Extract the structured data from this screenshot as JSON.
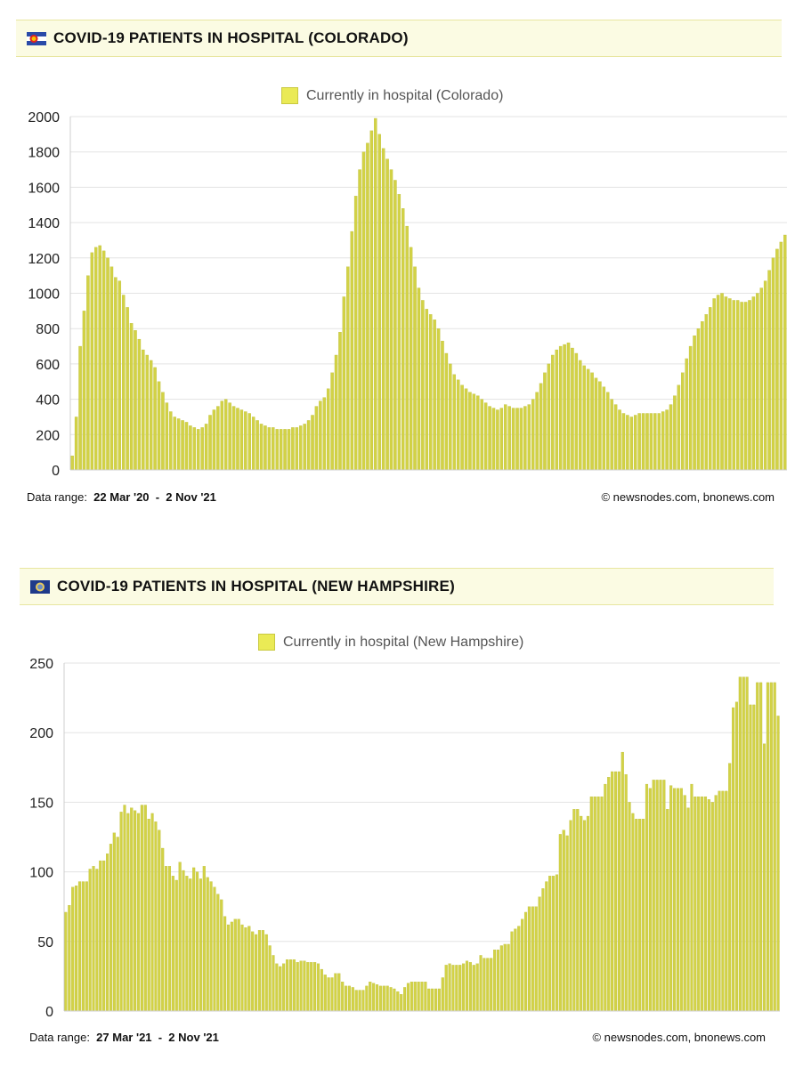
{
  "panels": [
    {
      "header_title": "COVID-19 PATIENTS IN HOSPITAL (COLORADO)",
      "flag_icon": "colorado-flag-icon",
      "legend_label": "Currently in hospital (Colorado)",
      "data_range_label": "Data range:",
      "data_range_value": "22 Mar '20  -  2 Nov '21",
      "credit": "© newsnodes.com, bnonews.com"
    },
    {
      "header_title": "COVID-19 PATIENTS IN HOSPITAL (NEW HAMPSHIRE)",
      "flag_icon": "new-hampshire-flag-icon",
      "legend_label": "Currently in hospital (New Hampshire)",
      "data_range_label": "Data range:",
      "data_range_value": "27 Mar '21  -  2 Nov '21",
      "credit": "© newsnodes.com, bnonews.com"
    }
  ],
  "colors": {
    "bar": "#d2d246",
    "bar_edge": "#b9b933",
    "header_bg": "#fbfbe3",
    "grid": "#e3e3e3"
  },
  "chart_data": [
    {
      "type": "bar",
      "title": "COVID-19 PATIENTS IN HOSPITAL (COLORADO)",
      "legend": "Currently in hospital (Colorado)",
      "x_range": [
        "22 Mar '20",
        "2 Nov '21"
      ],
      "ylim": [
        0,
        2000
      ],
      "yticks": [
        0,
        200,
        400,
        600,
        800,
        1000,
        1200,
        1400,
        1600,
        1800,
        2000
      ],
      "grid": true,
      "legend_position": "top-center",
      "series": [
        {
          "name": "Currently in hospital (Colorado)",
          "values": [
            80,
            300,
            700,
            900,
            1100,
            1230,
            1260,
            1270,
            1240,
            1200,
            1150,
            1090,
            1070,
            990,
            920,
            830,
            790,
            740,
            680,
            650,
            620,
            580,
            500,
            440,
            380,
            330,
            300,
            290,
            280,
            270,
            250,
            240,
            230,
            240,
            260,
            310,
            340,
            360,
            390,
            400,
            380,
            360,
            350,
            340,
            330,
            320,
            300,
            280,
            260,
            250,
            240,
            240,
            230,
            230,
            230,
            230,
            240,
            240,
            250,
            260,
            280,
            310,
            360,
            390,
            410,
            460,
            550,
            650,
            780,
            980,
            1150,
            1350,
            1550,
            1700,
            1800,
            1850,
            1920,
            1990,
            1900,
            1820,
            1760,
            1700,
            1640,
            1560,
            1480,
            1380,
            1260,
            1150,
            1030,
            960,
            910,
            880,
            850,
            800,
            730,
            660,
            600,
            540,
            510,
            480,
            460,
            440,
            430,
            420,
            400,
            380,
            360,
            350,
            340,
            350,
            370,
            360,
            350,
            350,
            350,
            360,
            370,
            400,
            440,
            490,
            550,
            600,
            650,
            680,
            700,
            710,
            720,
            690,
            660,
            620,
            590,
            570,
            550,
            520,
            500,
            470,
            440,
            400,
            370,
            340,
            320,
            310,
            300,
            310,
            320,
            320,
            320,
            320,
            320,
            320,
            330,
            340,
            370,
            420,
            480,
            550,
            630,
            700,
            760,
            800,
            840,
            880,
            920,
            970,
            990,
            1000,
            980,
            970,
            960,
            960,
            950,
            950,
            960,
            980,
            1000,
            1030,
            1070,
            1130,
            1200,
            1250,
            1290,
            1330
          ]
        }
      ]
    },
    {
      "type": "bar",
      "title": "COVID-19 PATIENTS IN HOSPITAL (NEW HAMPSHIRE)",
      "legend": "Currently in hospital (New Hampshire)",
      "x_range": [
        "27 Mar '21",
        "2 Nov '21"
      ],
      "ylim": [
        0,
        250
      ],
      "yticks": [
        0,
        50,
        100,
        150,
        200,
        250
      ],
      "grid": true,
      "legend_position": "top-center",
      "series": [
        {
          "name": "Currently in hospital (New Hampshire)",
          "values": [
            71,
            76,
            89,
            90,
            93,
            93,
            93,
            102,
            104,
            102,
            108,
            108,
            113,
            120,
            128,
            125,
            143,
            148,
            142,
            146,
            144,
            142,
            148,
            148,
            138,
            142,
            136,
            130,
            117,
            104,
            104,
            97,
            94,
            107,
            101,
            97,
            95,
            103,
            100,
            95,
            104,
            96,
            93,
            89,
            84,
            80,
            68,
            62,
            64,
            66,
            66,
            62,
            60,
            61,
            57,
            55,
            58,
            58,
            55,
            47,
            40,
            34,
            32,
            34,
            37,
            37,
            37,
            35,
            36,
            36,
            35,
            35,
            35,
            34,
            30,
            26,
            24,
            24,
            27,
            27,
            21,
            18,
            18,
            17,
            15,
            15,
            15,
            18,
            21,
            20,
            19,
            18,
            18,
            18,
            17,
            16,
            14,
            12,
            17,
            20,
            21,
            21,
            21,
            21,
            21,
            16,
            16,
            16,
            16,
            24,
            33,
            34,
            33,
            33,
            33,
            34,
            36,
            35,
            33,
            34,
            40,
            38,
            38,
            38,
            44,
            44,
            47,
            48,
            48,
            57,
            59,
            61,
            66,
            71,
            75,
            75,
            75,
            82,
            88,
            93,
            97,
            97,
            98,
            127,
            130,
            126,
            137,
            145,
            145,
            140,
            137,
            140,
            154,
            154,
            154,
            154,
            163,
            168,
            172,
            172,
            172,
            186,
            170,
            150,
            142,
            138,
            138,
            138,
            163,
            160,
            166,
            166,
            166,
            166,
            145,
            162,
            160,
            160,
            160,
            155,
            146,
            163,
            154,
            154,
            154,
            154,
            152,
            150,
            155,
            158,
            158,
            158,
            178,
            218,
            222,
            240,
            240,
            240,
            220,
            220,
            236,
            236,
            192,
            236,
            236,
            236,
            212
          ]
        }
      ]
    }
  ]
}
